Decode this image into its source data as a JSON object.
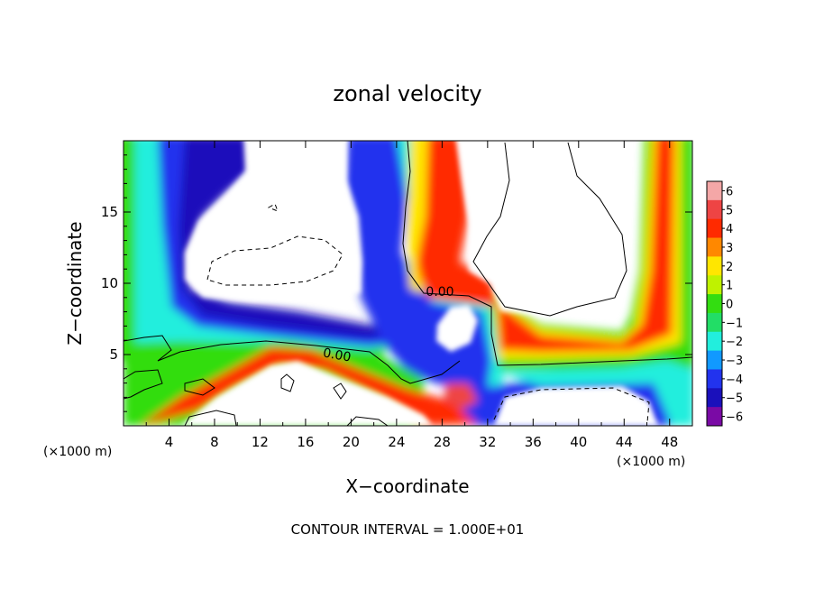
{
  "chart_data": {
    "type": "heatmap",
    "title": "zonal velocity",
    "xlabel": "X−coordinate",
    "ylabel": "Z−coordinate",
    "x_unit": "(×1000 m)",
    "y_unit": "(×1000 m)",
    "xlim": [
      0,
      50
    ],
    "ylim": [
      0,
      20
    ],
    "x_ticks": [
      4,
      8,
      12,
      16,
      20,
      24,
      28,
      32,
      36,
      40,
      44,
      48
    ],
    "x_tick_labels": [
      "4",
      "8",
      "12",
      "16",
      "20",
      "24",
      "28",
      "32",
      "36",
      "40",
      "44",
      "48"
    ],
    "y_ticks": [
      5,
      10,
      15
    ],
    "y_tick_labels": [
      "5",
      "10",
      "15"
    ],
    "colorbar": {
      "min": -6,
      "max": 6,
      "levels": [
        6,
        5,
        4,
        3,
        2,
        1,
        0,
        -1,
        -2,
        -3,
        -4,
        -5,
        -6
      ],
      "labels": [
        "6",
        "5",
        "4",
        "3",
        "2",
        "1",
        "0",
        "−1",
        "−2",
        "−3",
        "−4",
        "−5",
        "−6"
      ],
      "colors": [
        "#f4a7a7",
        "#ee4444",
        "#ff2a00",
        "#ff8800",
        "#ffe600",
        "#bff200",
        "#33dd11",
        "#22dd66",
        "#22eedd",
        "#1199ff",
        "#2233ee",
        "#1a10bb",
        "#7a0aa5"
      ]
    },
    "contour_labels": [
      {
        "text": "0.00",
        "x": 27.8,
        "z": 9.3
      },
      {
        "text": "0.00",
        "x": 19.5,
        "z": 4.9
      }
    ],
    "footer": "CONTOUR INTERVAL = 1.000E+01"
  }
}
